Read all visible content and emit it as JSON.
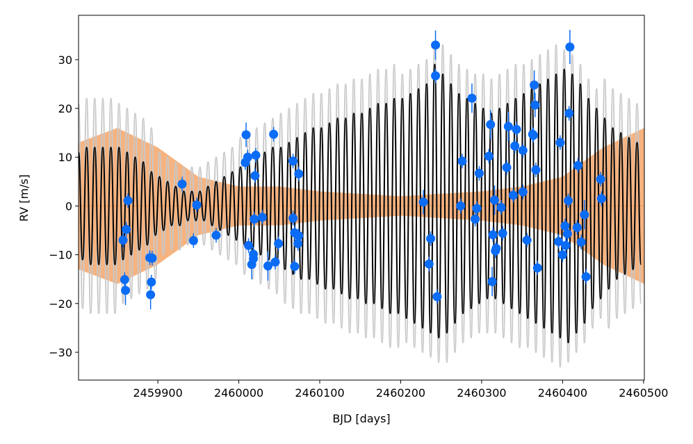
{
  "chart_data": {
    "type": "scatter",
    "xlabel": "BJD [days]",
    "ylabel": "RV [m/s]",
    "xlim": [
      2459802,
      2460501
    ],
    "ylim": [
      -35.7,
      39.1
    ],
    "xticks": [
      2459900,
      2460000,
      2460100,
      2460200,
      2460300,
      2460400,
      2460500
    ],
    "yticks": [
      {
        "value": -30,
        "label": "−30"
      },
      {
        "value": -20,
        "label": "−20"
      },
      {
        "value": -10,
        "label": "−10"
      },
      0,
      10,
      20,
      30
    ],
    "band": {
      "color": "#f39a55",
      "x": [
        2459802,
        2459850,
        2459900,
        2459950,
        2460000,
        2460050,
        2460100,
        2460200,
        2460300,
        2460350,
        2460400,
        2460450,
        2460501
      ],
      "upper": [
        13,
        16,
        12,
        6,
        4,
        4,
        3,
        2,
        3,
        4,
        6,
        12,
        16
      ],
      "lower": [
        -13,
        -16,
        -12,
        -6,
        -4,
        -4,
        -3,
        -2,
        -3,
        -4,
        -6,
        -12,
        -16
      ]
    },
    "hline": {
      "value": 0,
      "color": "#f39a55"
    },
    "model": {
      "color": "#000000",
      "x": [
        2459802,
        2459807,
        2459812,
        2459817,
        2459822,
        2459827,
        2459832,
        2459837,
        2459842,
        2459847,
        2459852,
        2459857,
        2459862,
        2459867,
        2459872,
        2459877,
        2459882,
        2459887,
        2459892,
        2459897,
        2459902,
        2459907,
        2459912,
        2459917,
        2459922,
        2459927,
        2459932,
        2459937,
        2459942,
        2459947,
        2459952,
        2459957,
        2459962,
        2459967,
        2459972,
        2459977,
        2459982,
        2459987,
        2459992,
        2459997,
        2460002,
        2460007,
        2460012,
        2460017,
        2460022,
        2460027,
        2460032,
        2460037,
        2460042,
        2460047,
        2460052,
        2460057,
        2460062,
        2460067,
        2460072,
        2460077,
        2460082,
        2460087,
        2460092,
        2460097,
        2460102,
        2460107,
        2460112,
        2460117,
        2460122,
        2460127,
        2460132,
        2460137,
        2460142,
        2460147,
        2460152,
        2460157,
        2460162,
        2460167,
        2460172,
        2460177,
        2460182,
        2460187,
        2460192,
        2460197,
        2460202,
        2460207,
        2460212,
        2460217,
        2460222,
        2460227,
        2460232,
        2460237,
        2460242,
        2460247,
        2460252,
        2460257,
        2460262,
        2460267,
        2460272,
        2460277,
        2460282,
        2460287,
        2460292,
        2460297,
        2460302,
        2460307,
        2460312,
        2460317,
        2460322,
        2460327,
        2460332,
        2460337,
        2460342,
        2460347,
        2460352,
        2460357,
        2460362,
        2460367,
        2460372,
        2460377,
        2460382,
        2460387,
        2460392,
        2460397,
        2460402,
        2460407,
        2460412,
        2460417,
        2460422,
        2460427,
        2460432,
        2460437,
        2460442,
        2460447,
        2460452,
        2460457,
        2460462,
        2460467,
        2460472,
        2460477,
        2460482,
        2460487,
        2460492,
        2460497
      ],
      "values": [
        11,
        -11,
        12,
        -12,
        12,
        -12,
        12,
        -12,
        12,
        -12,
        12,
        -11,
        11,
        -10,
        10,
        -9,
        9,
        -8,
        7,
        -6,
        6,
        -5,
        5,
        -4,
        4,
        -4,
        3,
        -3,
        3,
        -3,
        3,
        -3,
        4,
        -4,
        5,
        -5,
        6,
        -6,
        7,
        -7,
        8,
        -8,
        9,
        -9,
        10,
        -10,
        11,
        -11,
        12,
        -12,
        12,
        -13,
        13,
        -14,
        14,
        -15,
        15,
        -15,
        16,
        -16,
        16,
        -17,
        17,
        -17,
        18,
        -18,
        18,
        -19,
        19,
        -19,
        19,
        -20,
        20,
        -20,
        21,
        -21,
        21,
        -22,
        22,
        -22,
        22,
        -23,
        23,
        -24,
        24,
        -25,
        25,
        -26,
        29,
        -27,
        27,
        -26,
        25,
        -24,
        23,
        -22,
        22,
        -21,
        21,
        -20,
        20,
        -19,
        19,
        -19,
        20,
        -20,
        21,
        -21,
        22,
        -22,
        23,
        -23,
        24,
        -24,
        25,
        -25,
        26,
        -26,
        27,
        -27,
        28,
        -28,
        27,
        -26,
        25,
        -24,
        22,
        -21,
        20,
        -19,
        18,
        -17,
        16,
        -15,
        15,
        -14,
        14,
        -13,
        13,
        -12
      ],
      "spread": {
        "color": "#c8c8c8",
        "values": [
          21,
          -21,
          22,
          -22,
          22,
          -22,
          22,
          -22,
          22,
          -22,
          21,
          -20,
          20,
          -19,
          19,
          -18,
          18,
          -17,
          16,
          -15,
          11,
          -10,
          10,
          -9,
          9,
          -9,
          8,
          -8,
          8,
          -8,
          8,
          -8,
          9,
          -9,
          10,
          -10,
          11,
          -11,
          12,
          -12,
          14,
          -14,
          15,
          -15,
          16,
          -16,
          17,
          -17,
          18,
          -18,
          19,
          -20,
          20,
          -21,
          21,
          -22,
          22,
          -22,
          23,
          -23,
          23,
          -24,
          24,
          -24,
          25,
          -25,
          25,
          -26,
          26,
          -26,
          26,
          -27,
          27,
          -27,
          28,
          -28,
          28,
          -29,
          29,
          -29,
          27,
          -28,
          28,
          -29,
          29,
          -30,
          30,
          -31,
          33,
          -32,
          33,
          -32,
          31,
          -30,
          29,
          -28,
          28,
          -27,
          27,
          -26,
          27,
          -26,
          26,
          -26,
          27,
          -27,
          28,
          -28,
          29,
          -29,
          29,
          -29,
          30,
          -30,
          31,
          -31,
          32,
          -32,
          33,
          -33,
          32,
          -32,
          31,
          -30,
          29,
          -28,
          26,
          -25,
          24,
          -23,
          26,
          -25,
          24,
          -23,
          23,
          -22,
          22,
          -21,
          21,
          -20
        ]
      }
    },
    "series": [
      {
        "color": "#0b6cf5",
        "x": [
          2459857,
          2459859,
          2459860,
          2459861,
          2459863,
          2459890,
          2459893,
          2459892,
          2459891,
          2459930,
          2459944,
          2459948,
          2459972,
          2460009,
          2460008,
          2460011,
          2460012,
          2460016,
          2460018,
          2460018,
          2460020,
          2460019,
          2460021,
          2460029,
          2460036,
          2460043,
          2460045,
          2460049,
          2460067,
          2460067,
          2460069,
          2460069,
          2460073,
          2460074,
          2460074,
          2460228,
          2460235,
          2460237,
          2460243,
          2460243,
          2460245,
          2460274,
          2460276,
          2460288,
          2460292,
          2460294,
          2460297,
          2460309,
          2460311,
          2460313,
          2460314,
          2460316,
          2460317,
          2460318,
          2460324,
          2460326,
          2460331,
          2460333,
          2460339,
          2460341,
          2460343,
          2460351,
          2460351,
          2460356,
          2460363,
          2460364,
          2460365,
          2460366,
          2460367,
          2460369,
          2460395,
          2460397,
          2460400,
          2460403,
          2460404,
          2460406,
          2460407,
          2460408,
          2460409,
          2460418,
          2460419,
          2460423,
          2460427,
          2460429,
          2460447,
          2460448
        ],
        "values": [
          -7.0,
          -15.1,
          -17.3,
          -4.8,
          1.1,
          -10.6,
          -10.7,
          -15.6,
          -18.2,
          4.5,
          -7.1,
          0.2,
          -6.0,
          14.6,
          8.9,
          10.0,
          -8.1,
          -12.0,
          -10.8,
          -9.9,
          6.2,
          -2.7,
          10.4,
          -2.3,
          -12.3,
          14.7,
          -11.5,
          -7.7,
          9.2,
          -2.5,
          -12.4,
          -5.5,
          -7.7,
          -6.1,
          6.6,
          0.8,
          -11.9,
          -6.7,
          26.7,
          33.0,
          -18.6,
          0.0,
          9.2,
          22.1,
          -2.7,
          -0.5,
          6.7,
          10.2,
          16.7,
          -15.5,
          -5.9,
          1.2,
          -9.2,
          -8.7,
          -0.3,
          -5.6,
          7.9,
          16.3,
          2.2,
          12.3,
          15.7,
          11.4,
          2.9,
          -7.0,
          14.7,
          14.5,
          24.8,
          20.7,
          7.4,
          -12.7,
          -7.3,
          13.0,
          -10.0,
          -4.1,
          -8.1,
          -5.7,
          1.1,
          19.0,
          32.6,
          -4.4,
          8.3,
          -7.4,
          -1.8,
          -14.5,
          5.5,
          1.5
        ],
        "errors": [
          1.5,
          1.5,
          3,
          1.5,
          1.5,
          1.5,
          1.5,
          1.5,
          3,
          1.5,
          1.5,
          1.5,
          1.5,
          2.5,
          1.5,
          1.5,
          1.5,
          3,
          1.5,
          1.5,
          1.5,
          1.5,
          1.5,
          1.5,
          3,
          1.5,
          1.5,
          1.5,
          1.5,
          1.5,
          1.5,
          1.5,
          1.5,
          1.5,
          1.5,
          2.5,
          1.5,
          1.5,
          1.5,
          3,
          1.5,
          1.5,
          1.5,
          3,
          1.5,
          1.5,
          1.5,
          1.5,
          3,
          3,
          1.5,
          3,
          1.5,
          1.5,
          1.5,
          1.5,
          1.5,
          3,
          1.5,
          1.5,
          1.5,
          1.5,
          1.5,
          1.5,
          1.5,
          1.5,
          3,
          2.5,
          1.5,
          1.5,
          1.5,
          1.5,
          1.5,
          1.5,
          1.5,
          1.5,
          1.5,
          1.5,
          3.5,
          1.5,
          1.5,
          1.5,
          3,
          1.5,
          1.5,
          1.5
        ]
      }
    ]
  }
}
